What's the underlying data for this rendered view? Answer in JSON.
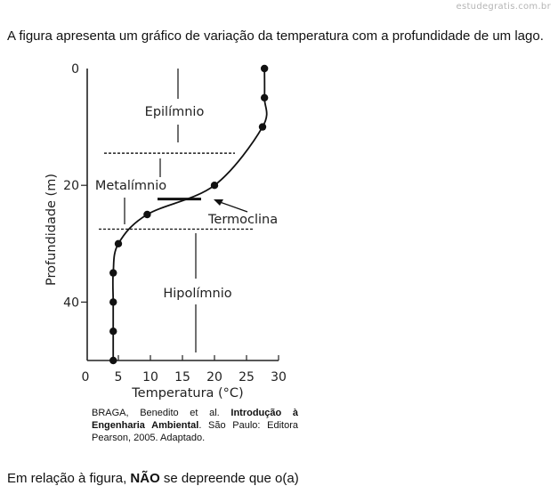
{
  "watermark": "estudegratis.com.br",
  "question": "A figura apresenta um gráfico de variação da temperatura com a profundidade de um lago.",
  "chart_data": {
    "type": "line",
    "xlabel": "Temperatura (°C)",
    "ylabel": "Profundidade (m)",
    "xlim": [
      0,
      30
    ],
    "ylim": [
      0,
      50
    ],
    "y_inverted": true,
    "x_ticks": [
      "0",
      "5",
      "10",
      "15",
      "20",
      "25",
      "30"
    ],
    "y_ticks": [
      "0",
      "20",
      "40"
    ],
    "grid": false,
    "points": [
      {
        "x": 27.8,
        "y": 0
      },
      {
        "x": 27.8,
        "y": 5
      },
      {
        "x": 27.5,
        "y": 10
      },
      {
        "x": 20.0,
        "y": 20
      },
      {
        "x": 9.5,
        "y": 25
      },
      {
        "x": 5.0,
        "y": 30
      },
      {
        "x": 4.2,
        "y": 35
      },
      {
        "x": 4.2,
        "y": 40
      },
      {
        "x": 4.2,
        "y": 45
      },
      {
        "x": 4.2,
        "y": 50
      }
    ],
    "boundaries": [
      {
        "y": 14.5
      },
      {
        "y": 27.5
      }
    ],
    "thermocline": {
      "y": 22.5,
      "x_from": 10,
      "x_to": 17.5
    },
    "layers": [
      {
        "name": "Epilímnio"
      },
      {
        "name": "Metalímnio"
      },
      {
        "name": "Hipolímnio"
      }
    ],
    "annotation": "Termoclina"
  },
  "citation": {
    "authors": "BRAGA, Benedito et al. ",
    "title": "Introdução à Engenharia Ambiental",
    "rest": ". São Paulo: Editora Pearson, 2005. Adaptado."
  },
  "prompt": {
    "before": "Em relação à figura, ",
    "emphasis": "NÃO",
    "after": " se depreende que o(a)"
  }
}
